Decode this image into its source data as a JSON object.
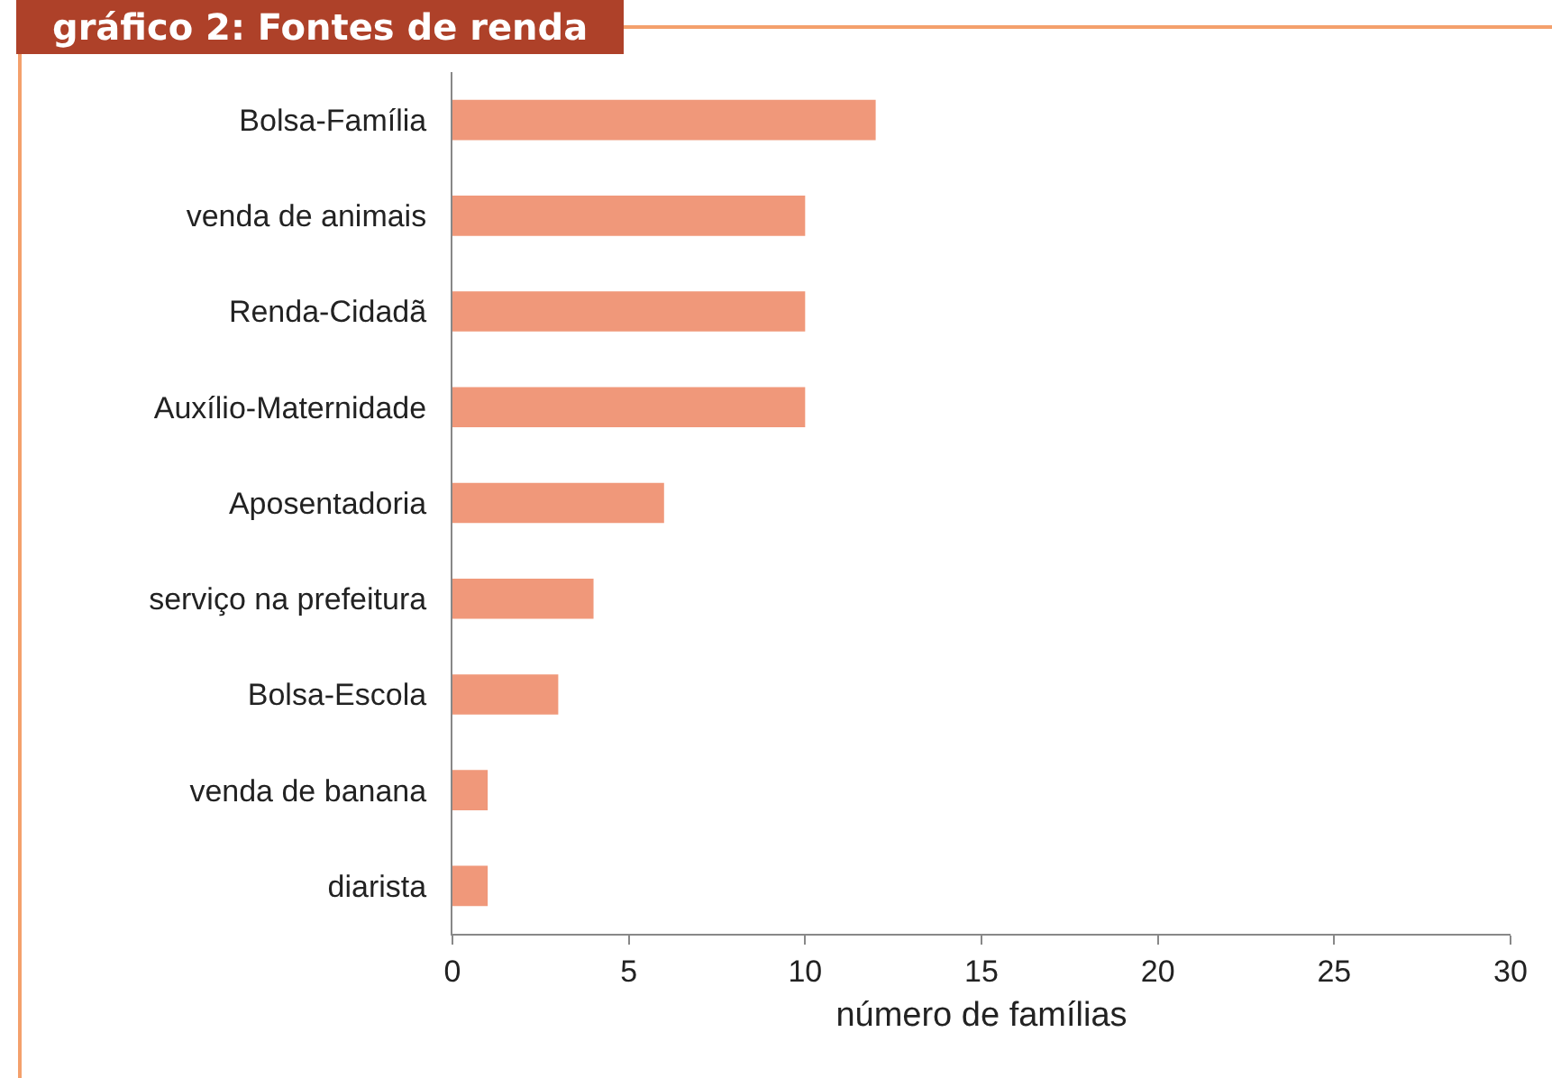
{
  "chart_data": {
    "type": "bar",
    "orientation": "horizontal",
    "title": "gráfico 2: Fontes de renda",
    "categories": [
      "Bolsa-Família",
      "venda de animais",
      "Renda-Cidadã",
      "Auxílio-Maternidade",
      "Aposentadoria",
      "serviço na prefeitura",
      "Bolsa-Escola",
      "venda de banana",
      "diarista"
    ],
    "values": [
      12,
      10,
      10,
      10,
      6,
      4,
      3,
      1,
      1
    ],
    "color": "#f0987a",
    "xlabel": "número de famílias",
    "xlim": [
      0,
      30
    ],
    "xticks": [
      0,
      5,
      10,
      15,
      20,
      25,
      30
    ],
    "grid": false
  }
}
